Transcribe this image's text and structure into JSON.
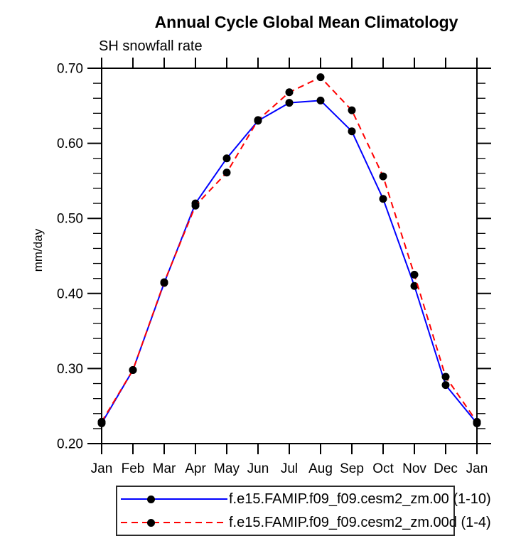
{
  "title": "Annual Cycle Global Mean Climatology",
  "subtitle": "SH snowfall rate",
  "ylabel": "mm/day",
  "chart_data": {
    "type": "line",
    "title": "Annual Cycle Global Mean Climatology",
    "subtitle": "SH snowfall rate",
    "ylabel": "mm/day",
    "categories": [
      "Jan",
      "Feb",
      "Mar",
      "Apr",
      "May",
      "Jun",
      "Jul",
      "Aug",
      "Sep",
      "Oct",
      "Nov",
      "Dec",
      "Jan"
    ],
    "ylim": [
      0.2,
      0.7
    ],
    "ytick_major": [
      0.2,
      0.3,
      0.4,
      0.5,
      0.6,
      0.7
    ],
    "ytick_labels": [
      "0.20",
      "0.30",
      "0.40",
      "0.50",
      "0.60",
      "0.70"
    ],
    "ytick_minor_step": 0.02,
    "grid": false,
    "legend_position": "bottom",
    "axis_color": "#000000",
    "series": [
      {
        "name": "f.e15.FAMIP.f09_f09.cesm2_zm.00 (1-10)",
        "color": "#0000ff",
        "style": "solid",
        "marker": "circle",
        "marker_color": "#000000",
        "values": [
          0.227,
          0.298,
          0.414,
          0.52,
          0.58,
          0.63,
          0.654,
          0.657,
          0.616,
          0.526,
          0.41,
          0.278,
          0.227
        ]
      },
      {
        "name": "f.e15.FAMIP.f09_f09.cesm2_zm.00d (1-4)",
        "color": "#ff0000",
        "style": "dashed",
        "marker": "circle",
        "marker_color": "#000000",
        "values": [
          0.229,
          0.298,
          0.415,
          0.517,
          0.561,
          0.631,
          0.668,
          0.688,
          0.644,
          0.556,
          0.425,
          0.289,
          0.229
        ]
      }
    ]
  }
}
